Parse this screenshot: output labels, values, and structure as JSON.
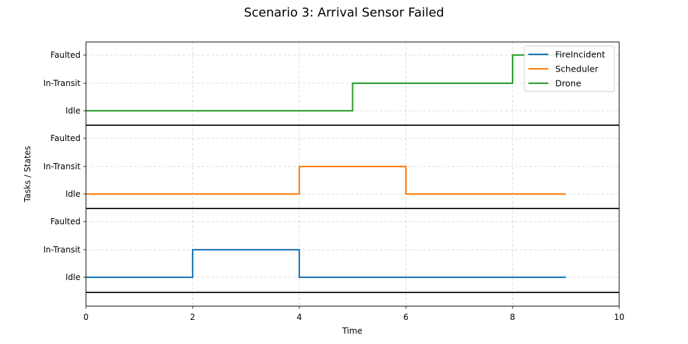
{
  "chart_data": {
    "type": "line",
    "title": "Scenario 3: Arrival Sensor Failed",
    "xlabel": "Time",
    "ylabel": "Tasks / States",
    "xlim": [
      0,
      10
    ],
    "xticks": [
      "0",
      "2",
      "4",
      "6",
      "8",
      "10"
    ],
    "state_labels": [
      "Idle",
      "In-Transit",
      "Faulted"
    ],
    "grid": true,
    "legend_position": "top-right",
    "series": [
      {
        "name": "FireIncident",
        "color": "#1f77b4",
        "steps": [
          {
            "x": 0,
            "state": "Idle"
          },
          {
            "x": 2,
            "state": "In-Transit"
          },
          {
            "x": 4,
            "state": "Idle"
          },
          {
            "x": 9,
            "state": "Idle"
          }
        ]
      },
      {
        "name": "Scheduler",
        "color": "#ff7f0e",
        "steps": [
          {
            "x": 0,
            "state": "Idle"
          },
          {
            "x": 4,
            "state": "In-Transit"
          },
          {
            "x": 6,
            "state": "Idle"
          },
          {
            "x": 9,
            "state": "Idle"
          }
        ]
      },
      {
        "name": "Drone",
        "color": "#2ca02c",
        "steps": [
          {
            "x": 0,
            "state": "Idle"
          },
          {
            "x": 5,
            "state": "In-Transit"
          },
          {
            "x": 8,
            "state": "Faulted"
          },
          {
            "x": 9,
            "state": "Faulted"
          }
        ]
      }
    ]
  }
}
